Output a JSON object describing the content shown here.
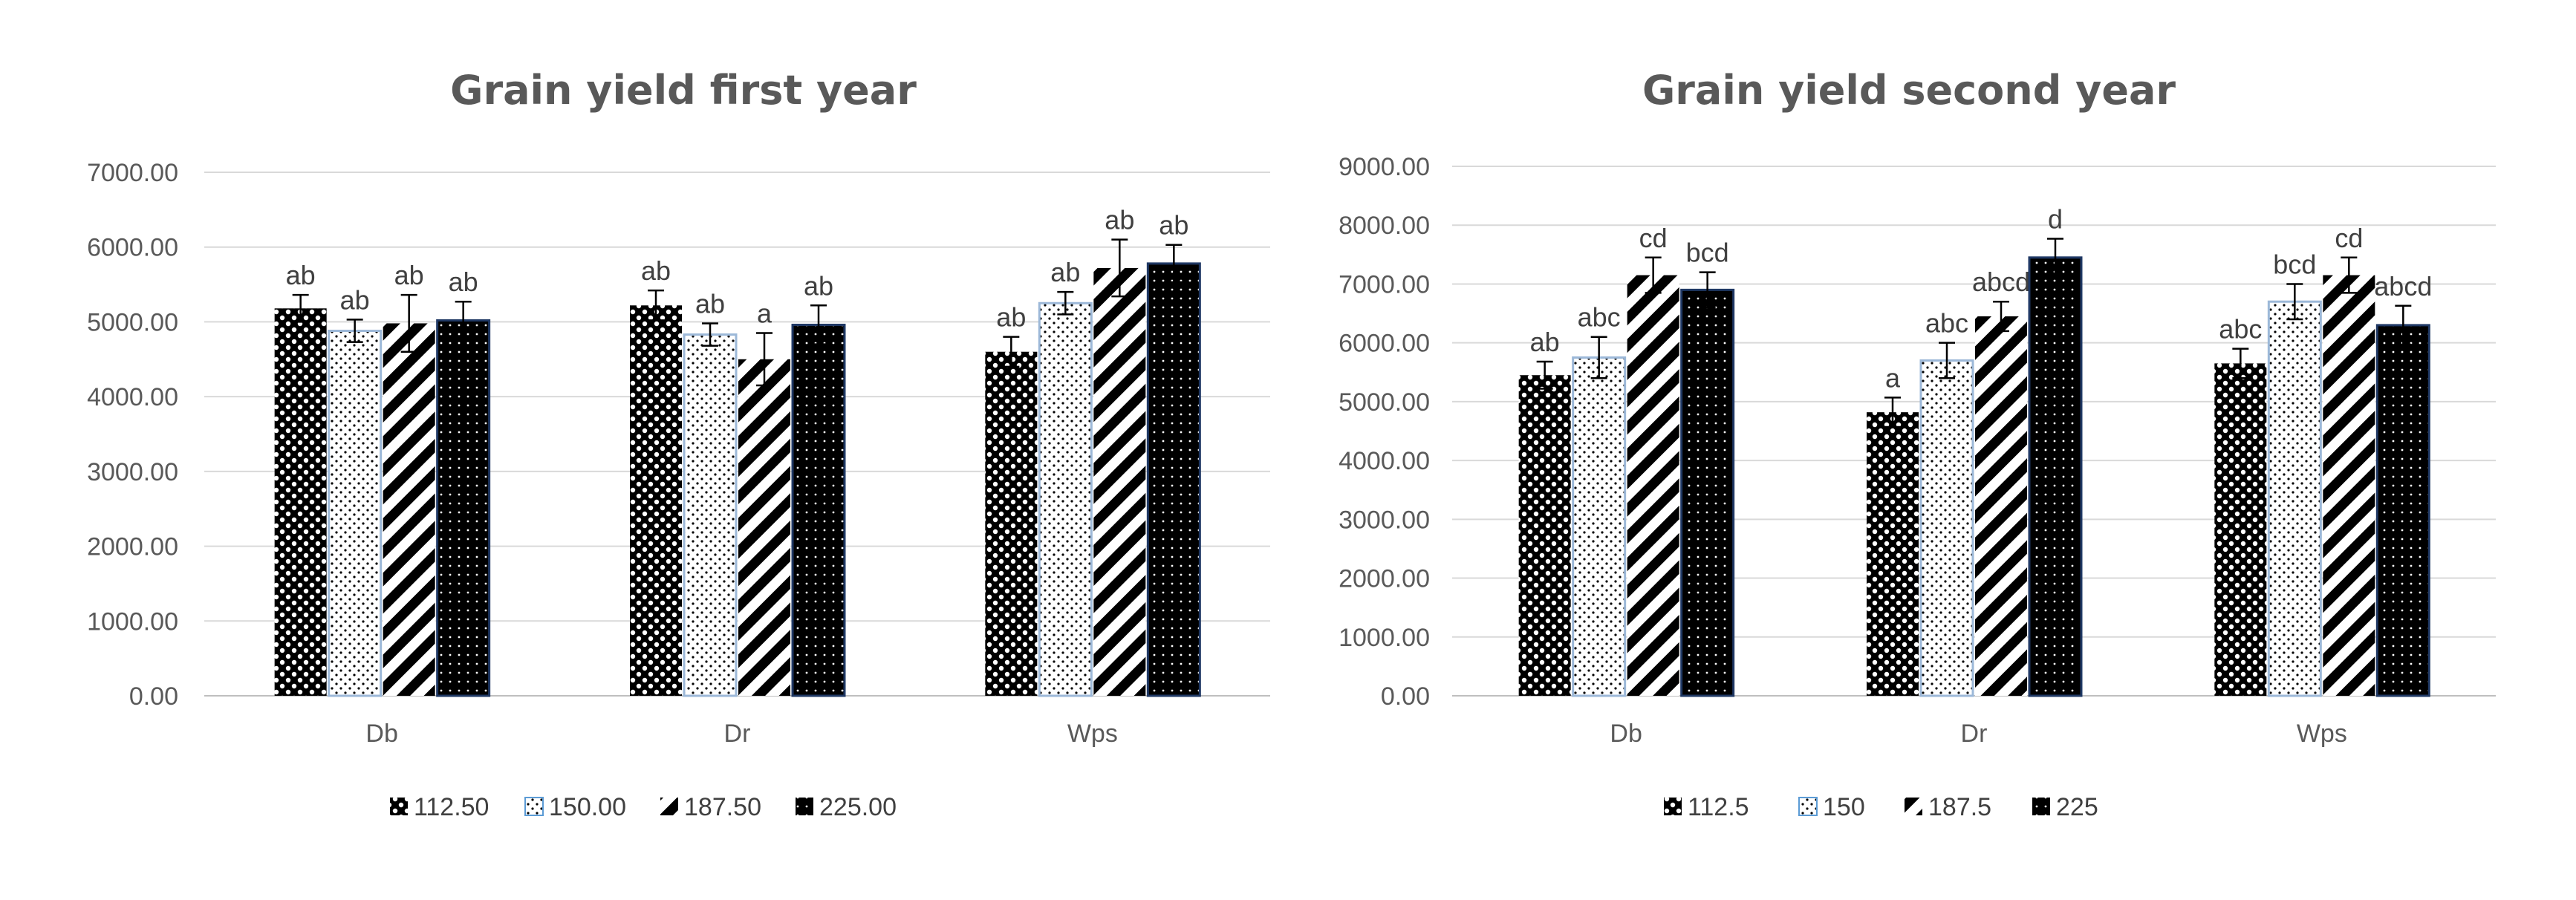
{
  "chart_data": [
    {
      "type": "bar",
      "title": "Grain yield first  year",
      "categories": [
        "Db",
        "Dr",
        "Wps"
      ],
      "ylim": [
        0,
        7000
      ],
      "yticks": [
        "0.00",
        "1000.00",
        "2000.00",
        "3000.00",
        "4000.00",
        "5000.00",
        "6000.00",
        "7000.00"
      ],
      "grid": true,
      "legend_position": "bottom",
      "series": [
        {
          "name": "112.50",
          "pattern": "checker",
          "values": [
            5180,
            5220,
            4600
          ],
          "errors": [
            180,
            200,
            200
          ],
          "labels": [
            "ab",
            "ab",
            "ab"
          ]
        },
        {
          "name": "150.00",
          "pattern": "dots",
          "values": [
            4880,
            4830,
            5250
          ],
          "errors": [
            150,
            150,
            150
          ],
          "labels": [
            "ab",
            "ab",
            "ab"
          ]
        },
        {
          "name": "187.50",
          "pattern": "diagonal",
          "values": [
            4980,
            4500,
            5720
          ],
          "errors": [
            380,
            350,
            380
          ],
          "labels": [
            "ab",
            "a",
            "ab"
          ]
        },
        {
          "name": "225.00",
          "pattern": "solid-dots",
          "values": [
            5020,
            4960,
            5780
          ],
          "errors": [
            250,
            260,
            250
          ],
          "labels": [
            "ab",
            "ab",
            "ab"
          ]
        }
      ]
    },
    {
      "type": "bar",
      "title": "Grain yield second year",
      "categories": [
        "Db",
        "Dr",
        "Wps"
      ],
      "ylim": [
        0,
        9000
      ],
      "yticks": [
        "0.00",
        "1000.00",
        "2000.00",
        "3000.00",
        "4000.00",
        "5000.00",
        "6000.00",
        "7000.00",
        "8000.00",
        "9000.00"
      ],
      "grid": true,
      "legend_position": "bottom",
      "series": [
        {
          "name": "112.5",
          "pattern": "checker",
          "values": [
            5450,
            4820,
            5650
          ],
          "errors": [
            230,
            250,
            250
          ],
          "labels": [
            "ab",
            "a",
            "abc"
          ]
        },
        {
          "name": "150",
          "pattern": "dots",
          "values": [
            5750,
            5700,
            6700
          ],
          "errors": [
            350,
            300,
            300
          ],
          "labels": [
            "abc",
            "abc",
            "bcd"
          ]
        },
        {
          "name": "187.5",
          "pattern": "diagonal",
          "values": [
            7150,
            6450,
            7150
          ],
          "errors": [
            300,
            250,
            300
          ],
          "labels": [
            "cd",
            "abcd",
            "cd"
          ]
        },
        {
          "name": "225",
          "pattern": "solid-dots",
          "values": [
            6900,
            7450,
            6300
          ],
          "errors": [
            300,
            320,
            330
          ],
          "labels": [
            "bcd",
            "d",
            "abcd"
          ]
        }
      ]
    }
  ]
}
